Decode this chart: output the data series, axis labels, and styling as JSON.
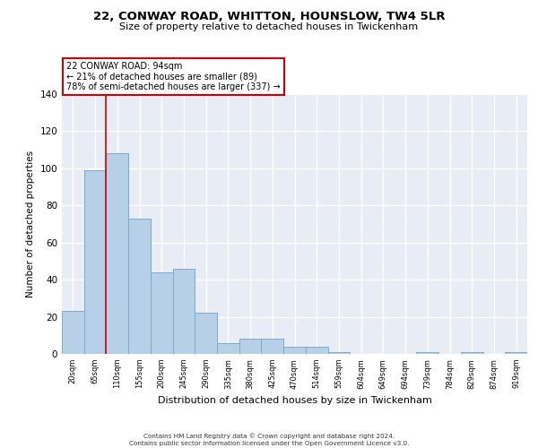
{
  "title": "22, CONWAY ROAD, WHITTON, HOUNSLOW, TW4 5LR",
  "subtitle": "Size of property relative to detached houses in Twickenham",
  "xlabel": "Distribution of detached houses by size in Twickenham",
  "ylabel": "Number of detached properties",
  "categories": [
    "20sqm",
    "65sqm",
    "110sqm",
    "155sqm",
    "200sqm",
    "245sqm",
    "290sqm",
    "335sqm",
    "380sqm",
    "425sqm",
    "470sqm",
    "514sqm",
    "559sqm",
    "604sqm",
    "649sqm",
    "694sqm",
    "739sqm",
    "784sqm",
    "829sqm",
    "874sqm",
    "919sqm"
  ],
  "values": [
    23,
    99,
    108,
    73,
    44,
    46,
    22,
    6,
    8,
    8,
    4,
    4,
    1,
    0,
    0,
    0,
    1,
    0,
    1,
    0,
    1
  ],
  "bar_color": "#b8cfe8",
  "bar_edge_color": "#7aaacf",
  "background_color": "#e8edf5",
  "grid_color": "#ffffff",
  "vline_color": "#cc0000",
  "annotation_text": "22 CONWAY ROAD: 94sqm\n← 21% of detached houses are smaller (89)\n78% of semi-detached houses are larger (337) →",
  "annotation_box_color": "#ffffff",
  "annotation_box_edge": "#cc0000",
  "footer": "Contains HM Land Registry data © Crown copyright and database right 2024.\nContains public sector information licensed under the Open Government Licence v3.0.",
  "ylim": [
    0,
    140
  ],
  "yticks": [
    0,
    20,
    40,
    60,
    80,
    100,
    120,
    140
  ]
}
